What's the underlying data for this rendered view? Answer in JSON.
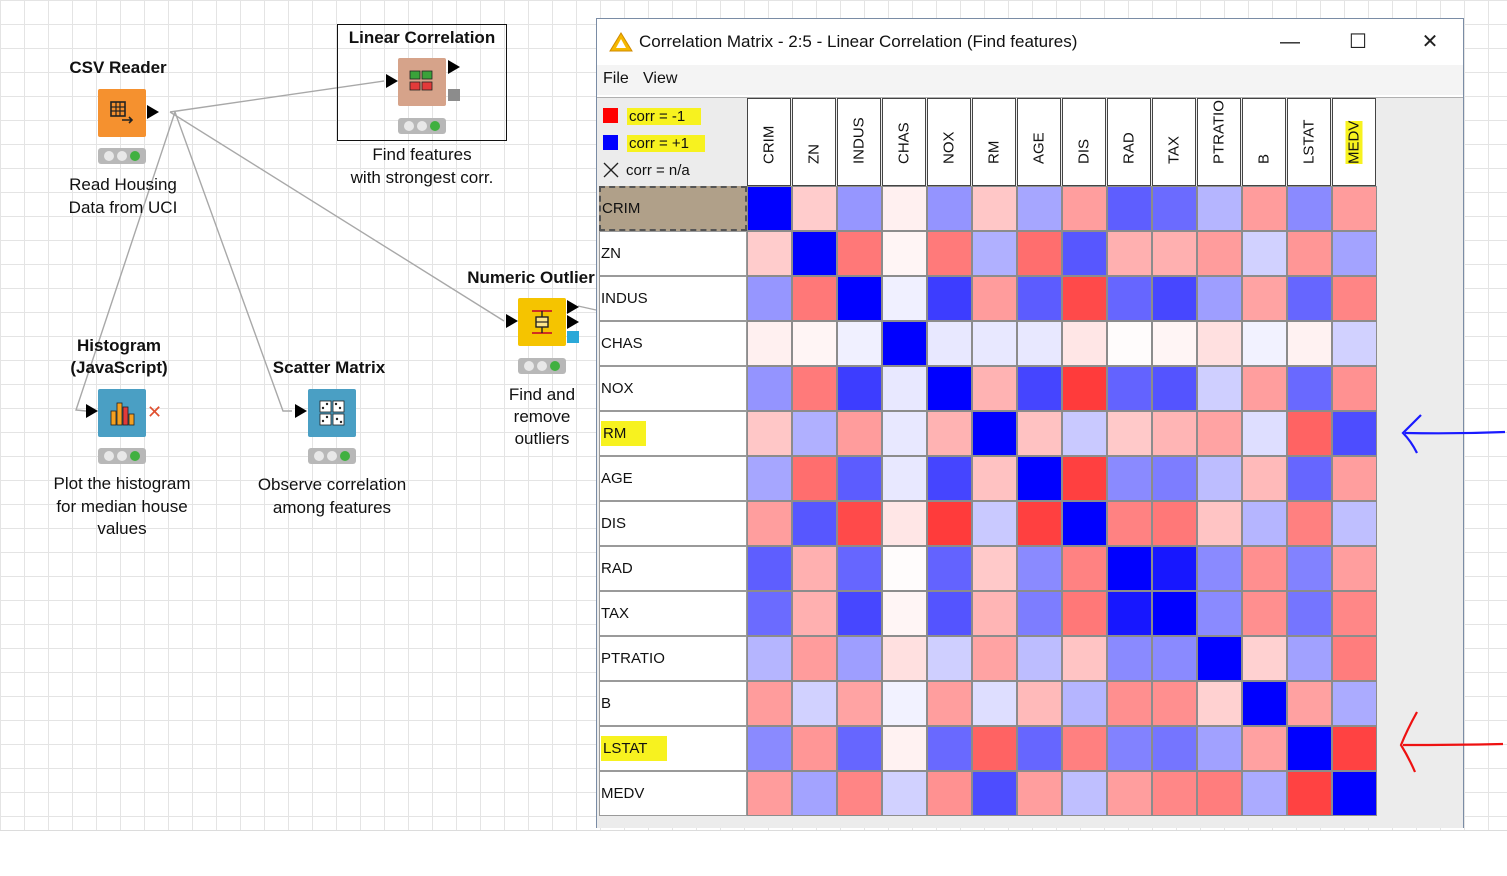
{
  "workflow": {
    "nodes": {
      "csv_reader": {
        "title": "CSV Reader",
        "desc_lines": [
          "Read Housing",
          "Data from UCI"
        ],
        "color": "#f5912f"
      },
      "linear_corr": {
        "title": "Linear Correlation",
        "desc_lines": [
          "Find features",
          "with strongest corr."
        ],
        "color": "#d6a38a"
      },
      "numeric_outlier": {
        "title": "Numeric Outlier",
        "desc_lines": [
          "Find and",
          "remove",
          "outliers"
        ],
        "color": "#f5c400"
      },
      "histogram": {
        "title_lines": [
          "Histogram",
          "(JavaScript)"
        ],
        "desc_lines": [
          "Plot the histogram",
          "for median house",
          "values"
        ],
        "color": "#4a9fc4"
      },
      "scatter_matrix": {
        "title": "Scatter Matrix",
        "desc_lines": [
          "Observe correlation",
          "among features"
        ],
        "color": "#4a9fc4"
      }
    }
  },
  "dialog": {
    "title": "Correlation Matrix - 2:5 - Linear Correlation (Find features)",
    "menu": [
      "File",
      "View"
    ],
    "controls": {
      "minimize": "—",
      "maximize": "☐",
      "close": "✕"
    },
    "legend": {
      "neg": {
        "label": "corr = -1",
        "color": "#ff0000"
      },
      "pos": {
        "label": "corr = +1",
        "color": "#0000ff"
      },
      "na": {
        "label": "corr = n/a"
      }
    },
    "selected_row": "CRIM",
    "highlighted_rows": [
      "RM",
      "LSTAT"
    ],
    "highlighted_cols": [
      "MEDV"
    ],
    "features": [
      "CRIM",
      "ZN",
      "INDUS",
      "CHAS",
      "NOX",
      "RM",
      "AGE",
      "DIS",
      "RAD",
      "TAX",
      "PTRATIO",
      "B",
      "LSTAT",
      "MEDV"
    ],
    "matrix": [
      [
        1.0,
        -0.2,
        0.41,
        -0.06,
        0.42,
        -0.22,
        0.35,
        -0.38,
        0.63,
        0.58,
        0.29,
        -0.39,
        0.46,
        -0.39
      ],
      [
        -0.2,
        1.0,
        -0.53,
        -0.04,
        -0.52,
        0.31,
        -0.57,
        0.66,
        -0.31,
        -0.31,
        -0.39,
        0.18,
        -0.41,
        0.36
      ],
      [
        0.41,
        -0.53,
        1.0,
        0.06,
        0.76,
        -0.39,
        0.64,
        -0.71,
        0.6,
        0.72,
        0.38,
        -0.36,
        0.6,
        -0.48
      ],
      [
        -0.06,
        -0.04,
        0.06,
        1.0,
        0.09,
        0.09,
        0.09,
        -0.1,
        -0.01,
        -0.04,
        -0.12,
        0.05,
        -0.05,
        0.18
      ],
      [
        0.42,
        -0.52,
        0.76,
        0.09,
        1.0,
        -0.3,
        0.73,
        -0.77,
        0.61,
        0.67,
        0.19,
        -0.38,
        0.59,
        -0.43
      ],
      [
        -0.22,
        0.31,
        -0.39,
        0.09,
        -0.3,
        1.0,
        -0.24,
        0.21,
        -0.21,
        -0.29,
        -0.36,
        0.13,
        -0.61,
        0.7
      ],
      [
        0.35,
        -0.57,
        0.64,
        0.09,
        0.73,
        -0.24,
        1.0,
        -0.75,
        0.46,
        0.51,
        0.26,
        -0.27,
        0.6,
        -0.38
      ],
      [
        -0.38,
        0.66,
        -0.71,
        -0.1,
        -0.77,
        0.21,
        -0.75,
        1.0,
        -0.49,
        -0.53,
        -0.23,
        0.29,
        -0.5,
        0.25
      ],
      [
        0.63,
        -0.31,
        0.6,
        -0.01,
        0.61,
        -0.21,
        0.46,
        -0.49,
        1.0,
        0.91,
        0.46,
        -0.44,
        0.49,
        -0.38
      ],
      [
        0.58,
        -0.31,
        0.72,
        -0.04,
        0.67,
        -0.29,
        0.51,
        -0.53,
        0.91,
        1.0,
        0.46,
        -0.44,
        0.54,
        -0.47
      ],
      [
        0.29,
        -0.39,
        0.38,
        -0.12,
        0.19,
        -0.36,
        0.26,
        -0.23,
        0.46,
        0.46,
        1.0,
        -0.18,
        0.37,
        -0.51
      ],
      [
        -0.39,
        0.18,
        -0.36,
        0.05,
        -0.38,
        0.13,
        -0.27,
        0.29,
        -0.44,
        -0.44,
        -0.18,
        1.0,
        -0.37,
        0.33
      ],
      [
        0.46,
        -0.41,
        0.6,
        -0.05,
        0.59,
        -0.61,
        0.6,
        -0.5,
        0.49,
        0.54,
        0.37,
        -0.37,
        1.0,
        -0.74
      ],
      [
        -0.39,
        0.36,
        -0.48,
        0.18,
        -0.43,
        0.7,
        -0.38,
        0.25,
        -0.38,
        -0.47,
        -0.51,
        0.33,
        -0.74,
        1.0
      ]
    ]
  },
  "annotations": {
    "rm_arrow_color": "#1a1aff",
    "lstat_arrow_color": "#ee1111"
  }
}
